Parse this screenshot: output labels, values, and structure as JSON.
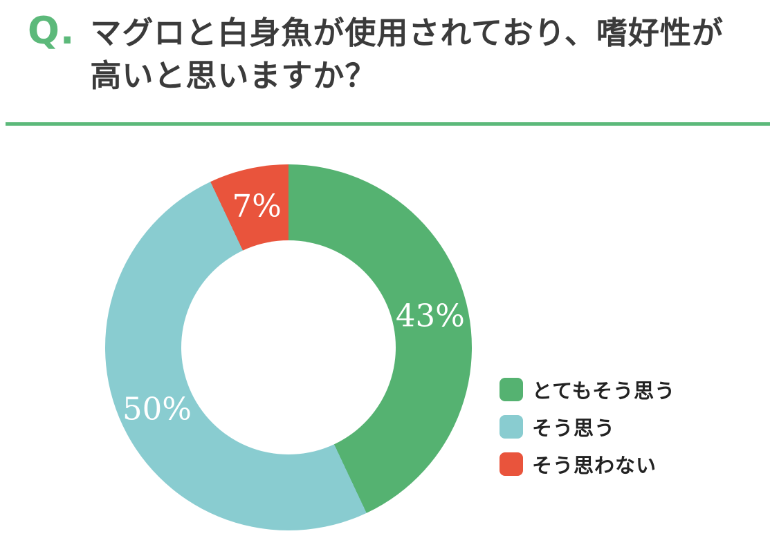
{
  "header": {
    "q_label": "Q.",
    "title_line1": "マグロと白身魚が使用されており、嗜好性が",
    "title_line2": "高いと思いますか？"
  },
  "colors": {
    "background": "#ffffff",
    "accent_green": "#5cb97a",
    "title_text": "#3b3b3b",
    "legend_text": "#222222",
    "slice_label_text": "#ffffff"
  },
  "chart_data": {
    "type": "pie",
    "subtype": "donut",
    "title": "マグロと白身魚が使用されており、嗜好性が高いと思いますか？",
    "start_angle_deg": 0,
    "direction": "clockwise",
    "legend_position": "right",
    "slices": [
      {
        "label": "とてもそう思う",
        "value_pct": 43,
        "data_label": "43%",
        "color": "#55b271"
      },
      {
        "label": "そう思う",
        "value_pct": 50,
        "data_label": "50%",
        "color": "#89ccd0"
      },
      {
        "label": "そう思わない",
        "value_pct": 7,
        "data_label": "7%",
        "color": "#e9543c"
      }
    ]
  }
}
